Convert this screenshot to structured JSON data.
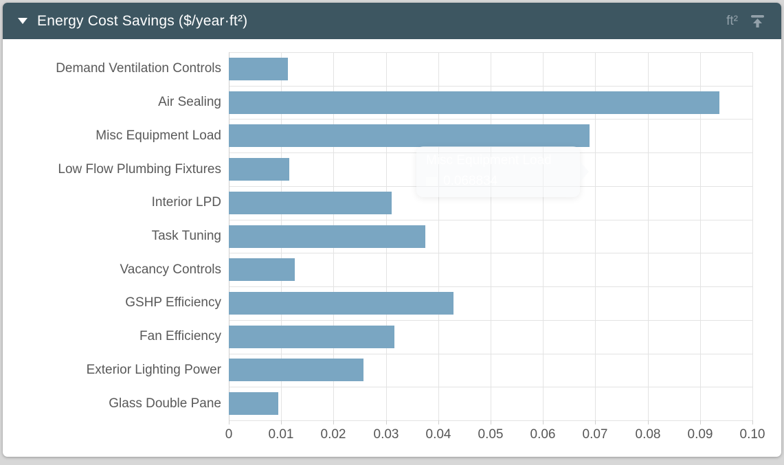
{
  "header": {
    "collapse_icon": "triangle-down",
    "title": "Energy Cost Savings ($/year·ft²)",
    "unit_label": "ft²",
    "export_icon": "upload-arrow"
  },
  "chart_data": {
    "type": "bar",
    "orientation": "horizontal",
    "title": "Energy Cost Savings ($/year·ft²)",
    "categories": [
      "Demand Ventilation Controls",
      "Air Sealing",
      "Misc Equipment Load",
      "Low Flow Plumbing Fixtures",
      "Interior LPD",
      "Task Tuning",
      "Vacancy Controls",
      "GSHP Efficiency",
      "Fan Efficiency",
      "Exterior Lighting Power",
      "Glass Double Pane"
    ],
    "values": [
      0.0113,
      0.0937,
      0.068834,
      0.0115,
      0.0311,
      0.0375,
      0.0126,
      0.0429,
      0.0316,
      0.0257,
      0.0094
    ],
    "xlim": [
      0,
      0.1
    ],
    "x_tick_labels": [
      "0",
      "0.01",
      "0.02",
      "0.03",
      "0.04",
      "0.05",
      "0.06",
      "0.07",
      "0.08",
      "0.09",
      "0.10"
    ],
    "grid": true,
    "legend": "none",
    "bar_color": "#7aa6c2"
  },
  "tooltip": {
    "series_label": "Misc Equipment Load",
    "value": "0.068834"
  },
  "colors": {
    "header_bg": "#3d5661",
    "header_text": "#ffffff",
    "header_muted": "#93a1aa",
    "bar": "#7aa6c2",
    "gridline": "#e3e3e3",
    "axis_line": "#cfcfcf",
    "label_text": "#595959",
    "page_bg": "#d7d7d7",
    "tooltip_text": "#ffffff"
  }
}
